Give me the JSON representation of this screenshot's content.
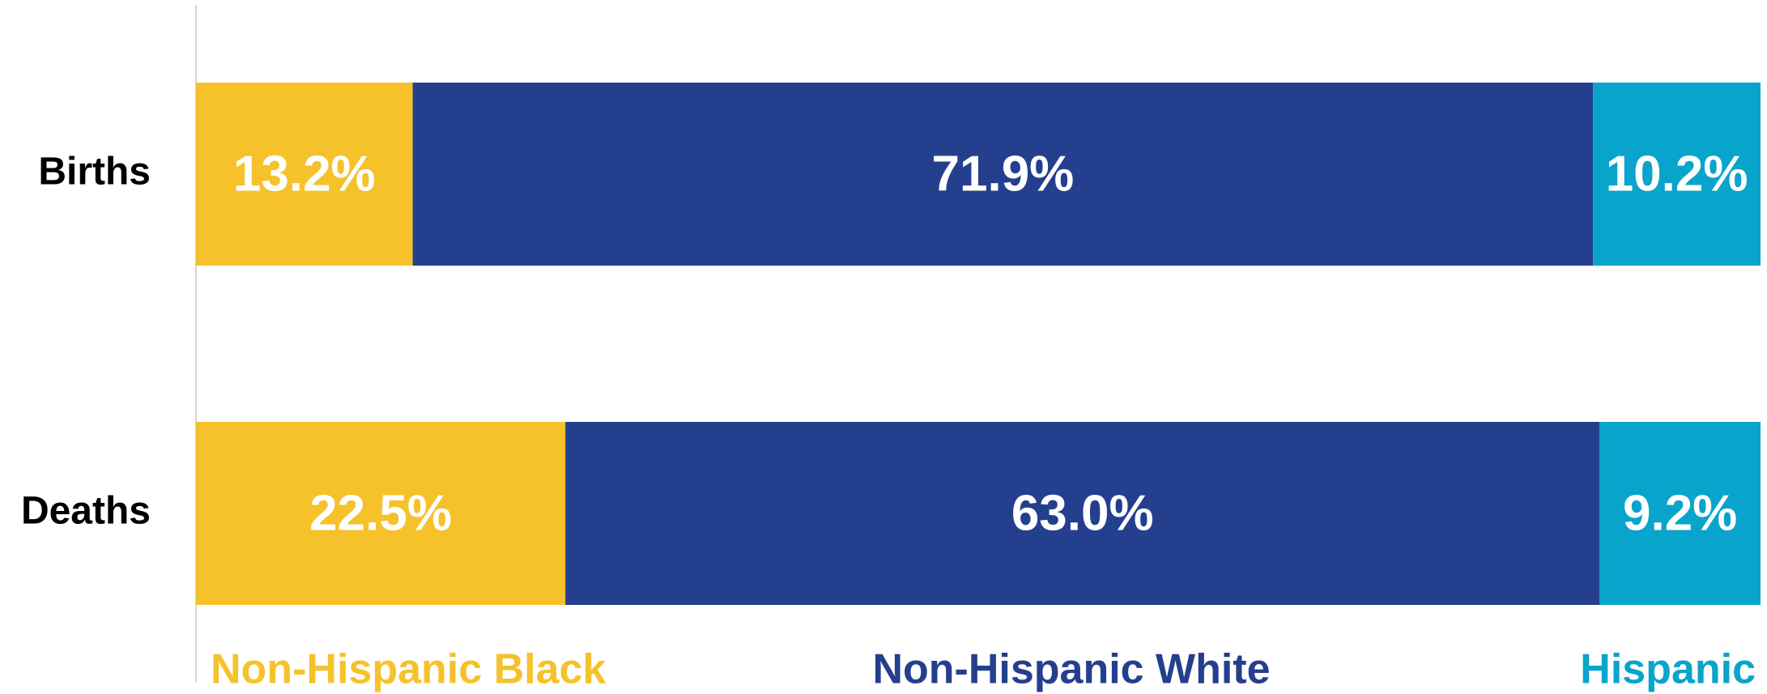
{
  "chart_data": {
    "type": "bar",
    "orientation": "horizontal",
    "stacked": true,
    "categories": [
      "Births",
      "Deaths"
    ],
    "series": [
      {
        "name": "Non-Hispanic Black",
        "color": "#F6C22B",
        "values": [
          13.2,
          22.5
        ],
        "value_labels": [
          "13.2%",
          "22.5%"
        ]
      },
      {
        "name": "Non-Hispanic White",
        "color": "#243F8D",
        "values": [
          71.9,
          63.0
        ],
        "value_labels": [
          "71.9%",
          "63.0%"
        ]
      },
      {
        "name": "Hispanic",
        "color": "#08A4CB",
        "values": [
          10.2,
          9.2
        ],
        "value_labels": [
          "10.2%",
          "9.2%"
        ]
      }
    ],
    "xlim": [
      0,
      95.3
    ],
    "grid": false,
    "legend_position": "bottom"
  }
}
